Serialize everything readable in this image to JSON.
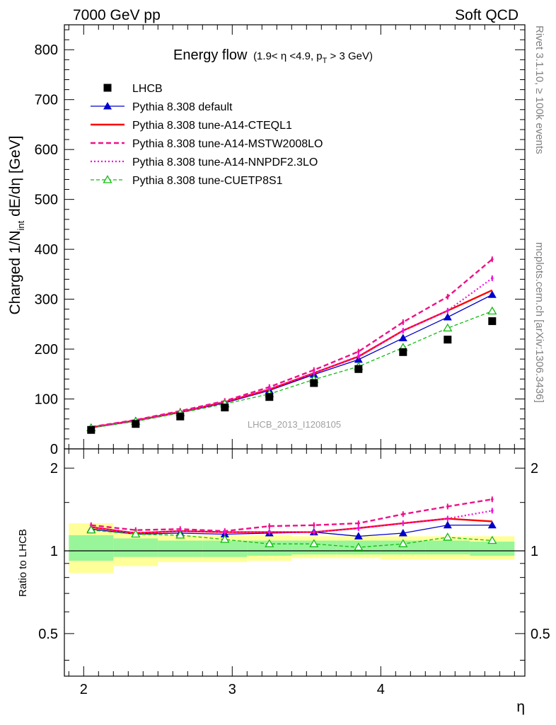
{
  "header": {
    "left": "7000 GeV pp",
    "right": "Soft QCD"
  },
  "side": {
    "rivet": "Rivet 3.1.10, ≥ 100k events",
    "mcplots": "mcplots.cern.ch [arXiv:1306.3436]"
  },
  "chart_data": [
    {
      "type": "line",
      "title": "Energy flow",
      "subtitle": "(1.9< η <4.9, p_T > 3 GeV)",
      "xlabel": "η",
      "ylabel": "Charged 1/N_int dE/dη [GeV]",
      "xlim": [
        1.87,
        4.97
      ],
      "ylim": [
        0,
        850
      ],
      "x_ticks": [
        2,
        3,
        4
      ],
      "y_ticks": [
        0,
        100,
        200,
        300,
        400,
        500,
        600,
        700,
        800
      ],
      "watermark": "LHCB_2013_I1208105",
      "legend_position": "top-left",
      "x": [
        2.05,
        2.35,
        2.65,
        2.95,
        3.25,
        3.55,
        3.85,
        4.15,
        4.45,
        4.75
      ],
      "series": [
        {
          "name": "LHCB",
          "color": "#000000",
          "style": "data",
          "values": [
            38,
            50,
            65,
            83,
            104,
            132,
            160,
            194,
            219,
            256
          ]
        },
        {
          "name": "Pythia 8.308 default",
          "color": "#0000cc",
          "style": "solid-triangle",
          "values": [
            42,
            56,
            73,
            92,
            117,
            149,
            179,
            222,
            264,
            309
          ]
        },
        {
          "name": "Pythia 8.308 tune-A14-CTEQL1",
          "color": "#ff0000",
          "style": "solid-thick",
          "values": [
            43,
            57,
            74,
            94,
            119,
            152,
            185,
            237,
            277,
            318
          ]
        },
        {
          "name": "Pythia 8.308 tune-A14-MSTW2008LO",
          "color": "#ee1188",
          "style": "dashed",
          "values": [
            44,
            58,
            76,
            96,
            124,
            158,
            195,
            254,
            305,
            380
          ]
        },
        {
          "name": "Pythia 8.308 tune-A14-NNPDF2.3LO",
          "color": "#ee11dd",
          "style": "dotted",
          "values": [
            43,
            57,
            74,
            94,
            120,
            152,
            186,
            237,
            277,
            342
          ]
        },
        {
          "name": "Pythia 8.308 tune-CUETP8S1",
          "color": "#11bb11",
          "style": "dashed-open-triangle",
          "values": [
            42,
            55,
            72,
            90,
            110,
            139,
            165,
            203,
            242,
            276
          ]
        }
      ]
    },
    {
      "type": "line",
      "ylabel": "Ratio to LHCB",
      "ylim": [
        0.35,
        2.35
      ],
      "y_scale": "log",
      "y_ticks": [
        0.5,
        1,
        2
      ],
      "band_edges": [
        1.9,
        2.2,
        2.5,
        2.8,
        3.1,
        3.4,
        3.7,
        4.0,
        4.3,
        4.6,
        4.9
      ],
      "band_stat_low": [
        0.92,
        0.95,
        0.95,
        0.95,
        0.96,
        0.97,
        0.97,
        0.97,
        0.97,
        0.96
      ],
      "band_stat_high": [
        1.14,
        1.11,
        1.09,
        1.09,
        1.09,
        1.09,
        1.09,
        1.09,
        1.09,
        1.08
      ],
      "band_total_low": [
        0.83,
        0.88,
        0.91,
        0.91,
        0.92,
        0.94,
        0.94,
        0.93,
        0.93,
        0.93
      ],
      "band_total_high": [
        1.26,
        1.18,
        1.14,
        1.14,
        1.14,
        1.13,
        1.13,
        1.13,
        1.13,
        1.13
      ],
      "series": [
        {
          "name": "Pythia 8.308 default",
          "values": [
            1.2,
            1.15,
            1.16,
            1.15,
            1.16,
            1.17,
            1.13,
            1.16,
            1.24,
            1.24
          ]
        },
        {
          "name": "Pythia 8.308 tune-A14-CTEQL1",
          "values": [
            1.22,
            1.16,
            1.18,
            1.17,
            1.17,
            1.17,
            1.21,
            1.26,
            1.31,
            1.28
          ]
        },
        {
          "name": "Pythia 8.308 tune-A14-MSTW2008LO",
          "values": [
            1.24,
            1.19,
            1.2,
            1.18,
            1.23,
            1.24,
            1.26,
            1.36,
            1.45,
            1.54
          ]
        },
        {
          "name": "Pythia 8.308 tune-A14-NNPDF2.3LO",
          "values": [
            1.22,
            1.16,
            1.18,
            1.17,
            1.17,
            1.17,
            1.21,
            1.26,
            1.31,
            1.4
          ]
        },
        {
          "name": "Pythia 8.308 tune-CUETP8S1",
          "values": [
            1.19,
            1.15,
            1.14,
            1.1,
            1.06,
            1.06,
            1.03,
            1.06,
            1.12,
            1.09
          ]
        }
      ]
    }
  ]
}
